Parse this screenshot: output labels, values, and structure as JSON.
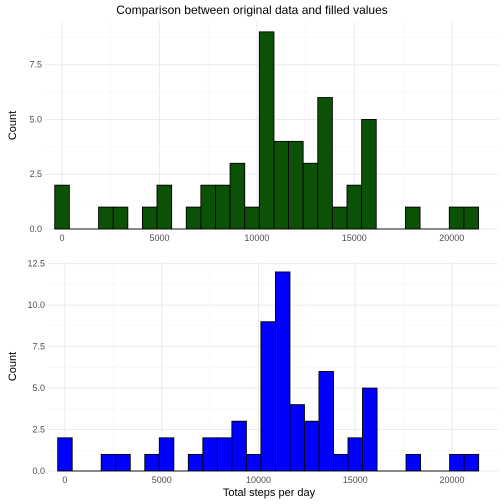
{
  "chart_data": {
    "title": "Comparison between original data and filled values",
    "xlabel": "Total steps per day",
    "bin_width": 750,
    "panels": [
      {
        "type": "bar",
        "fill": "#0b5207",
        "outline": "#000000",
        "ylabel": "Count",
        "xlim": [
          -875,
          22375
        ],
        "ylim": [
          0,
          9.45
        ],
        "x_ticks": [
          0,
          5000,
          10000,
          15000,
          20000
        ],
        "y_ticks": [
          0,
          2.5,
          5,
          7.5
        ],
        "y_tick_labels": [
          "0.0",
          "2.5",
          "5.0",
          "7.5"
        ],
        "x_tick_labels": [
          "0",
          "5000",
          "10000",
          "15000",
          "20000"
        ],
        "bin_centers": [
          0,
          750,
          1500,
          2250,
          3000,
          3750,
          4500,
          5250,
          6000,
          6750,
          7500,
          8250,
          9000,
          9750,
          10500,
          11250,
          12000,
          12750,
          13500,
          14250,
          15000,
          15750,
          16500,
          17250,
          18000,
          18750,
          19500,
          20250,
          21000
        ],
        "counts": [
          2,
          0,
          0,
          1,
          1,
          0,
          1,
          2,
          0,
          1,
          2,
          2,
          3,
          1,
          9,
          4,
          4,
          3,
          6,
          1,
          2,
          5,
          0,
          0,
          1,
          0,
          0,
          1,
          1
        ]
      },
      {
        "type": "bar",
        "fill": "#0000ff",
        "outline": "#000000",
        "ylabel": "Count",
        "xlim": [
          -875,
          22375
        ],
        "ylim": [
          0,
          12.6
        ],
        "x_ticks": [
          0,
          5000,
          10000,
          15000,
          20000
        ],
        "y_ticks": [
          0,
          2.5,
          5,
          7.5,
          10,
          12.5
        ],
        "y_tick_labels": [
          "0.0",
          "2.5",
          "5.0",
          "7.5",
          "10.0",
          "12.5"
        ],
        "x_tick_labels": [
          "0",
          "5000",
          "10000",
          "15000",
          "20000"
        ],
        "bin_centers": [
          0,
          750,
          1500,
          2250,
          3000,
          3750,
          4500,
          5250,
          6000,
          6750,
          7500,
          8250,
          9000,
          9750,
          10500,
          11250,
          12000,
          12750,
          13500,
          14250,
          15000,
          15750,
          16500,
          17250,
          18000,
          18750,
          19500,
          20250,
          21000
        ],
        "counts": [
          2,
          0,
          0,
          1,
          1,
          0,
          1,
          2,
          0,
          1,
          2,
          2,
          3,
          1,
          9,
          12,
          4,
          3,
          6,
          1,
          2,
          5,
          0,
          0,
          1,
          0,
          0,
          1,
          1
        ]
      }
    ]
  }
}
